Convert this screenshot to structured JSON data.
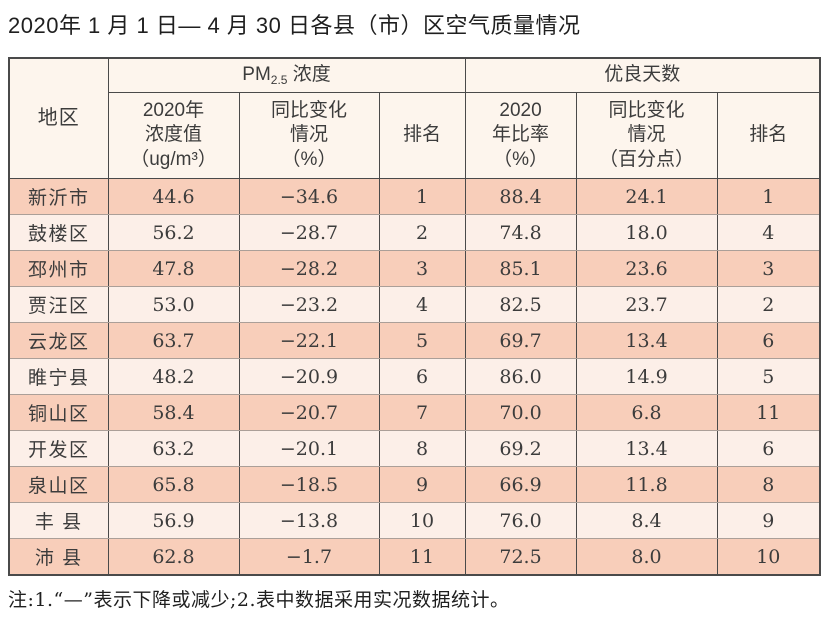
{
  "title": "2020年 1 月 1 日— 4 月 30 日各县（市）区空气质量情况",
  "note": "注:1.“—”表示下降或减少;2.表中数据采用实况数据统计。",
  "colors": {
    "row_odd": "#f8ceba",
    "row_even": "#fcefe8",
    "header_bg": "#fdf5ed",
    "border_dark": "#4a4a4a",
    "border_light": "#ab9f98"
  },
  "table": {
    "header": {
      "region": "地区",
      "pm_group": {
        "prefix": "PM",
        "subscript": "2.5",
        "suffix": " 浓度"
      },
      "good_days_group": "优良天数",
      "sub_columns": {
        "pm_value": "2020年\n浓度值\n（ug/m³）",
        "pm_change": "同比变化\n情况\n（%）",
        "pm_rank": "排名",
        "ratio_value": "2020\n年比率\n（%）",
        "ratio_change": "同比变化\n情况\n（百分点）",
        "ratio_rank": "排名"
      }
    },
    "rows": [
      {
        "region": "新沂市",
        "pm_value": "44.6",
        "pm_change": "−34.6",
        "pm_rank": "1",
        "ratio": "88.4",
        "ratio_change": "24.1",
        "ratio_rank": "1"
      },
      {
        "region": "鼓楼区",
        "pm_value": "56.2",
        "pm_change": "−28.7",
        "pm_rank": "2",
        "ratio": "74.8",
        "ratio_change": "18.0",
        "ratio_rank": "4"
      },
      {
        "region": "邳州市",
        "pm_value": "47.8",
        "pm_change": "−28.2",
        "pm_rank": "3",
        "ratio": "85.1",
        "ratio_change": "23.6",
        "ratio_rank": "3"
      },
      {
        "region": "贾汪区",
        "pm_value": "53.0",
        "pm_change": "−23.2",
        "pm_rank": "4",
        "ratio": "82.5",
        "ratio_change": "23.7",
        "ratio_rank": "2"
      },
      {
        "region": "云龙区",
        "pm_value": "63.7",
        "pm_change": "−22.1",
        "pm_rank": "5",
        "ratio": "69.7",
        "ratio_change": "13.4",
        "ratio_rank": "6"
      },
      {
        "region": "睢宁县",
        "pm_value": "48.2",
        "pm_change": "−20.9",
        "pm_rank": "6",
        "ratio": "86.0",
        "ratio_change": "14.9",
        "ratio_rank": "5"
      },
      {
        "region": "铜山区",
        "pm_value": "58.4",
        "pm_change": "−20.7",
        "pm_rank": "7",
        "ratio": "70.0",
        "ratio_change": "6.8",
        "ratio_rank": "11"
      },
      {
        "region": "开发区",
        "pm_value": "63.2",
        "pm_change": "−20.1",
        "pm_rank": "8",
        "ratio": "69.2",
        "ratio_change": "13.4",
        "ratio_rank": "6"
      },
      {
        "region": "泉山区",
        "pm_value": "65.8",
        "pm_change": "−18.5",
        "pm_rank": "9",
        "ratio": "66.9",
        "ratio_change": "11.8",
        "ratio_rank": "8"
      },
      {
        "region": "丰 县",
        "pm_value": "56.9",
        "pm_change": "−13.8",
        "pm_rank": "10",
        "ratio": "76.0",
        "ratio_change": "8.4",
        "ratio_rank": "9"
      },
      {
        "region": "沛 县",
        "pm_value": "62.8",
        "pm_change": "−1.7",
        "pm_rank": "11",
        "ratio": "72.5",
        "ratio_change": "8.0",
        "ratio_rank": "10"
      }
    ]
  }
}
